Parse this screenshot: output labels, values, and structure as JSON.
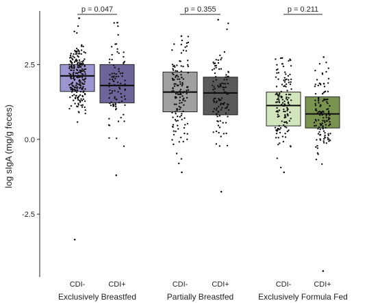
{
  "chart_data": {
    "type": "box",
    "title": "",
    "xlabel": "",
    "ylabel": "log sIgA (mg/g feces)",
    "ylim": [
      -4.6,
      4.2
    ],
    "yticks": [
      2.5,
      0.0,
      -2.5
    ],
    "ytick_labels": [
      "2.5",
      "0.0",
      "-2.5"
    ],
    "grid": false,
    "legend": "none",
    "groups": [
      {
        "name": "Exclusively Breastfed",
        "p_value": "p = 0.047",
        "boxes": [
          {
            "label": "CDI-",
            "color": "#9b95d0",
            "q1": 1.6,
            "median": 2.12,
            "q3": 2.5,
            "whisker_low": -1.1,
            "whisker_high": 4.0,
            "point_min": -3.35,
            "point_max": 4.05,
            "n_points": 230
          },
          {
            "label": "CDI+",
            "color": "#6b6599",
            "q1": 1.22,
            "median": 1.8,
            "q3": 2.5,
            "whisker_low": -0.5,
            "whisker_high": 3.9,
            "point_min": -1.2,
            "point_max": 3.9,
            "n_points": 95
          }
        ]
      },
      {
        "name": "Partially Breastfed",
        "p_value": "p = 0.355",
        "boxes": [
          {
            "label": "CDI-",
            "color": "#a0a0a0",
            "q1": 0.92,
            "median": 1.58,
            "q3": 2.25,
            "whisker_low": -1.1,
            "whisker_high": 3.4,
            "point_min": -1.1,
            "point_max": 3.45,
            "n_points": 140
          },
          {
            "label": "CDI+",
            "color": "#5a5a5a",
            "q1": 0.82,
            "median": 1.55,
            "q3": 2.08,
            "whisker_low": -1.1,
            "whisker_high": 3.4,
            "point_min": -1.75,
            "point_max": 4.0,
            "n_points": 110
          }
        ]
      },
      {
        "name": "Exclusively Formula Fed",
        "p_value": "p = 0.211",
        "boxes": [
          {
            "label": "CDI-",
            "color": "#d3e5bd",
            "q1": 0.45,
            "median": 1.13,
            "q3": 1.58,
            "whisker_low": -1.1,
            "whisker_high": 2.7,
            "point_min": -1.1,
            "point_max": 2.72,
            "n_points": 140
          },
          {
            "label": "CDI+",
            "color": "#7a9450",
            "q1": 0.38,
            "median": 0.85,
            "q3": 1.42,
            "whisker_low": -1.1,
            "whisker_high": 2.7,
            "point_min": -4.4,
            "point_max": 2.75,
            "n_points": 130
          }
        ]
      }
    ]
  }
}
